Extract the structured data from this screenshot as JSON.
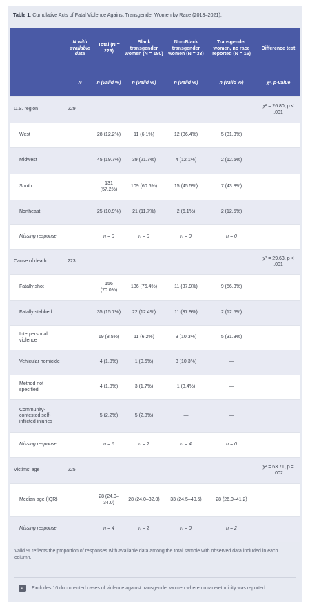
{
  "caption": {
    "label": "Table 1",
    "text": ". Cumulative Acts of Fatal Violence Against Transgender Women by Race (2013–2021)."
  },
  "header": {
    "row1": [
      "",
      "N with available data",
      "Total (N = 229)",
      "Black transgender women (N = 180)",
      "Non-Black transgender women (N = 33)",
      "Transgender women, no race reported (N = 16)",
      "Difference test"
    ],
    "row2": [
      "",
      "N",
      "n (valid %)",
      "n (valid %)",
      "n (valid %)",
      "n (valid %)",
      "χ², p-value"
    ]
  },
  "rows": {
    "region": {
      "label": "U.S. region",
      "n": "229",
      "test": "χ² = 26.80, p < .001"
    },
    "west": [
      "West",
      "28 (12.2%)",
      "11 (6.1%)",
      "12 (36.4%)",
      "5 (31.3%)"
    ],
    "midwest": [
      "Midwest",
      "45 (19.7%)",
      "39 (21.7%)",
      "4 (12.1%)",
      "2 (12.5%)"
    ],
    "south": [
      "South",
      "131 (57.2%)",
      "109 (60.6%)",
      "15 (45.5%)",
      "7 (43.8%)"
    ],
    "northeast": [
      "Northeast",
      "25 (10.9%)",
      "21 (11.7%)",
      "2 (6.1%)",
      "2 (12.5%)"
    ],
    "missing1": [
      "Missing response",
      "n = 0",
      "n = 0",
      "n = 0",
      "n = 0"
    ],
    "cause": {
      "label": "Cause of death",
      "n": "223",
      "test": "χ² = 29.63, p < .001"
    },
    "shot": [
      "Fatally shot",
      "156 (70.0%)",
      "136 (76.4%)",
      "11 (37.9%)",
      "9 (56.3%)"
    ],
    "stabbed": [
      "Fatally stabbed",
      "35 (15.7%)",
      "22 (12.4%)",
      "11 (37.9%)",
      "2 (12.5%)"
    ],
    "interpersonal": [
      "Interpersonal violence",
      "19 (8.5%)",
      "11 (6.2%)",
      "3 (10.3%)",
      "5 (31.3%)"
    ],
    "vehicular": [
      "Vehicular homicide",
      "4 (1.8%)",
      "1 (0.6%)",
      "3 (10.3%)",
      "—"
    ],
    "method": [
      "Method not specified",
      "4 (1.8%)",
      "3 (1.7%)",
      "1 (3.4%)",
      "—"
    ],
    "community": [
      "Community-contested self-inflicted injuries",
      "5 (2.2%)",
      "5 (2.8%)",
      "—",
      "—"
    ],
    "missing2": [
      "Missing response",
      "n = 6",
      "n = 2",
      "n = 4",
      "n = 0"
    ],
    "age": {
      "label": "Victims' age",
      "n": "225",
      "test": "χ² = 63.71, p = .002"
    },
    "median": [
      "Median age (IQR)",
      "28 (24.0–34.0)",
      "28 (24.0–32.0)",
      "33 (24.5–40.5)",
      "28 (26.0–41.2)"
    ],
    "missing3": [
      "Missing response",
      "n = 4",
      "n = 2",
      "n = 0",
      "n = 2"
    ]
  },
  "footnote": "Valid % reflects the proportion of responses with available data among the total sample with observed data included in each column.",
  "note": {
    "badge": "a",
    "text": "Excludes 16 documented cases of violence against transgender women where no race/ethnicity was reported."
  }
}
